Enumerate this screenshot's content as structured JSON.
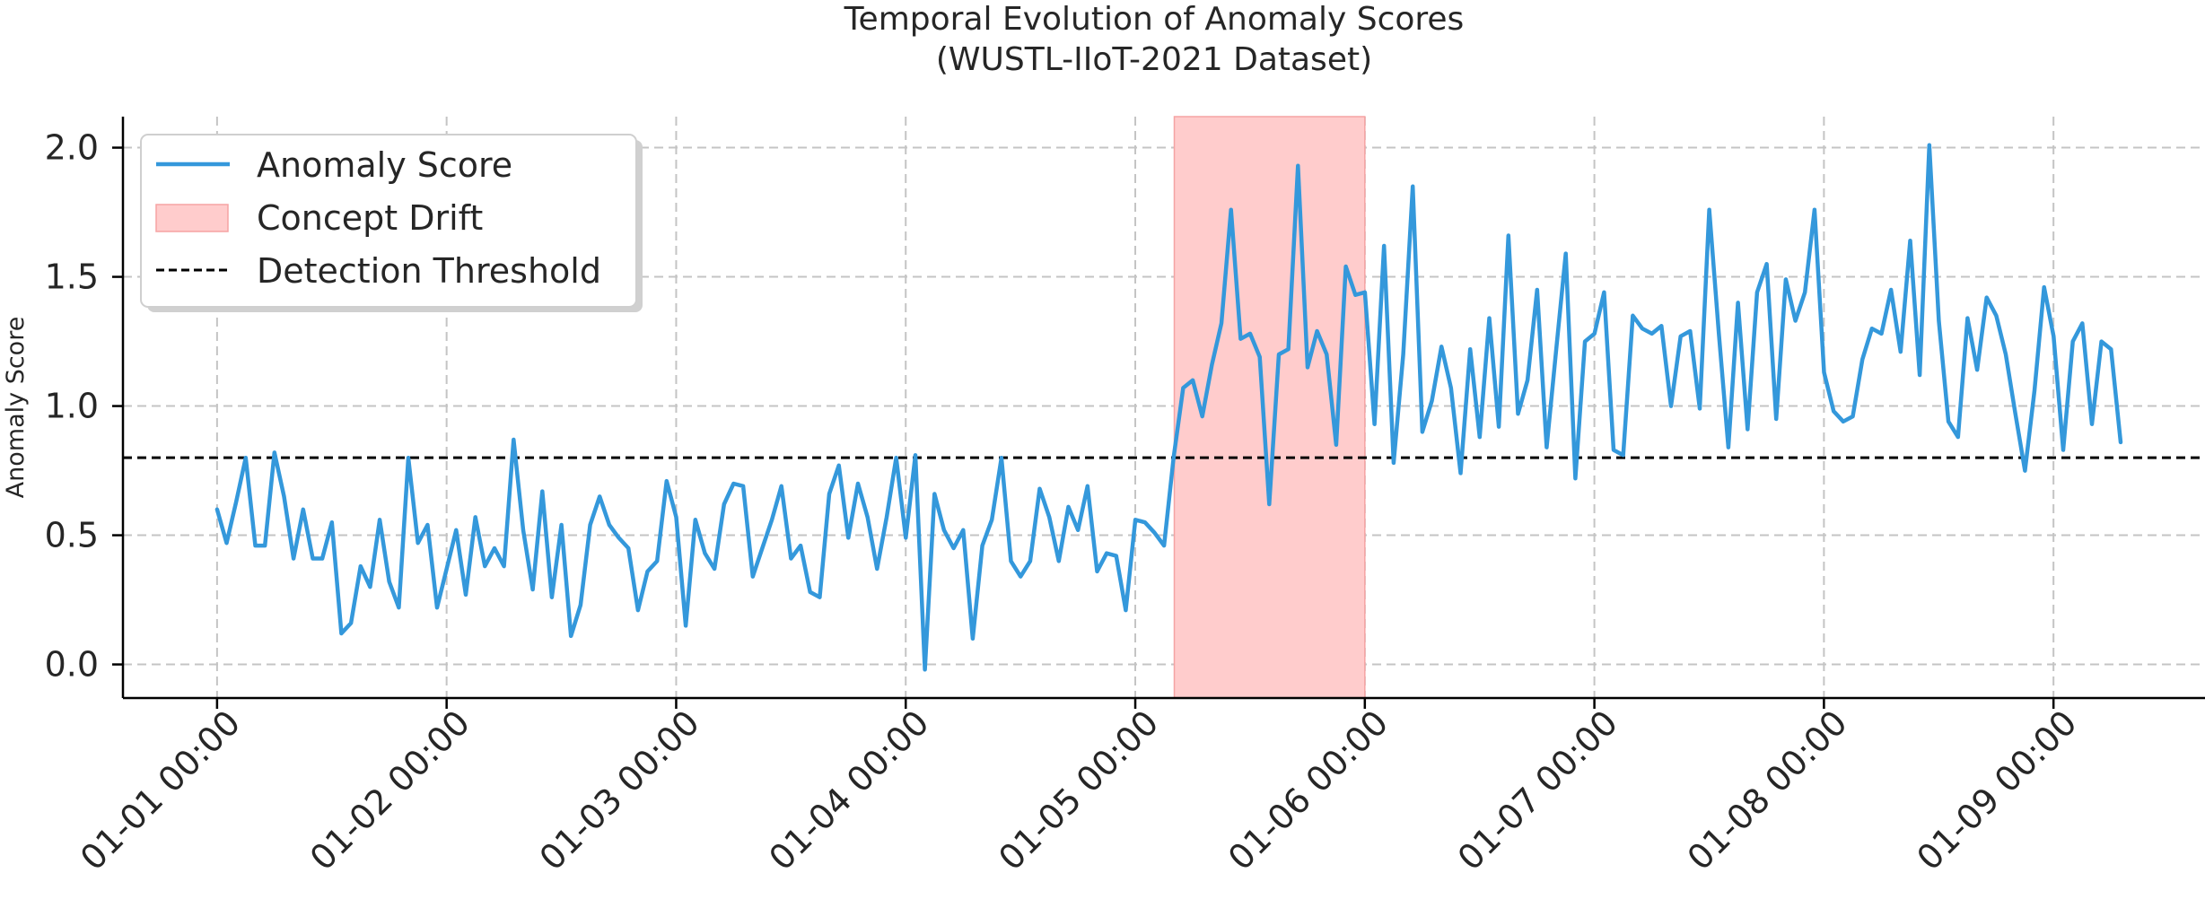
{
  "chart_data": {
    "type": "line",
    "title": "Temporal Evolution of Anomaly Scores",
    "subtitle": "(WUSTL-IIoT-2021 Dataset)",
    "xlabel": "",
    "ylabel": "Anomaly Score",
    "ylim": [
      -0.13,
      2.12
    ],
    "xlim": [
      -0.41,
      8.66
    ],
    "grid": true,
    "legend": {
      "placement": "top-left",
      "entries": [
        {
          "label": "Anomaly Score",
          "kind": "line",
          "color": "#3498db"
        },
        {
          "label": "Concept Drift",
          "kind": "patch",
          "color": "#ffcccc"
        },
        {
          "label": "Detection Threshold",
          "kind": "dashed-line",
          "color": "#000000"
        }
      ]
    },
    "x_ticks": [
      {
        "value": 0,
        "label": "01-01 00:00"
      },
      {
        "value": 1,
        "label": "01-02 00:00"
      },
      {
        "value": 2,
        "label": "01-03 00:00"
      },
      {
        "value": 3,
        "label": "01-04 00:00"
      },
      {
        "value": 4,
        "label": "01-05 00:00"
      },
      {
        "value": 5,
        "label": "01-06 00:00"
      },
      {
        "value": 6,
        "label": "01-07 00:00"
      },
      {
        "value": 7,
        "label": "01-08 00:00"
      },
      {
        "value": 8,
        "label": "01-09 00:00"
      }
    ],
    "y_ticks": [
      {
        "value": 0.0,
        "label": "0.0"
      },
      {
        "value": 0.5,
        "label": "0.5"
      },
      {
        "value": 1.0,
        "label": "1.0"
      },
      {
        "value": 1.5,
        "label": "1.5"
      },
      {
        "value": 2.0,
        "label": "2.0"
      }
    ],
    "threshold": {
      "value": 0.8,
      "color": "#000000"
    },
    "drift_region": {
      "start": 4.17,
      "end": 5.0,
      "color": "#ffcccc"
    },
    "series": [
      {
        "name": "Anomaly Score",
        "color": "#3498db",
        "x_start": 0,
        "x_step": 0.04167,
        "values": [
          0.6,
          0.47,
          0.63,
          0.8,
          0.46,
          0.46,
          0.82,
          0.65,
          0.41,
          0.6,
          0.41,
          0.41,
          0.55,
          0.12,
          0.16,
          0.38,
          0.3,
          0.56,
          0.32,
          0.22,
          0.8,
          0.47,
          0.54,
          0.22,
          0.37,
          0.52,
          0.27,
          0.57,
          0.38,
          0.45,
          0.38,
          0.87,
          0.52,
          0.29,
          0.67,
          0.26,
          0.54,
          0.11,
          0.23,
          0.54,
          0.65,
          0.54,
          0.49,
          0.45,
          0.21,
          0.36,
          0.4,
          0.71,
          0.57,
          0.15,
          0.56,
          0.43,
          0.37,
          0.62,
          0.7,
          0.69,
          0.34,
          0.45,
          0.56,
          0.69,
          0.41,
          0.46,
          0.28,
          0.26,
          0.66,
          0.77,
          0.49,
          0.7,
          0.57,
          0.37,
          0.57,
          0.8,
          0.49,
          0.81,
          -0.02,
          0.66,
          0.52,
          0.45,
          0.52,
          0.1,
          0.46,
          0.56,
          0.8,
          0.4,
          0.34,
          0.4,
          0.68,
          0.57,
          0.4,
          0.61,
          0.52,
          0.69,
          0.36,
          0.43,
          0.42,
          0.21,
          0.56,
          0.55,
          0.51,
          0.46,
          0.8,
          1.07,
          1.1,
          0.96,
          1.16,
          1.32,
          1.76,
          1.26,
          1.28,
          1.19,
          0.62,
          1.2,
          1.22,
          1.93,
          1.15,
          1.29,
          1.2,
          0.85,
          1.54,
          1.43,
          1.44,
          0.93,
          1.62,
          0.78,
          1.2,
          1.85,
          0.9,
          1.02,
          1.23,
          1.07,
          0.74,
          1.22,
          0.88,
          1.34,
          0.92,
          1.66,
          0.97,
          1.1,
          1.45,
          0.84,
          1.22,
          1.59,
          0.72,
          1.25,
          1.28,
          1.44,
          0.83,
          0.81,
          1.35,
          1.3,
          1.28,
          1.31,
          1.0,
          1.27,
          1.29,
          0.99,
          1.76,
          1.28,
          0.84,
          1.4,
          0.91,
          1.44,
          1.55,
          0.95,
          1.49,
          1.33,
          1.44,
          1.76,
          1.13,
          0.98,
          0.94,
          0.96,
          1.18,
          1.3,
          1.28,
          1.45,
          1.21,
          1.64,
          1.12,
          2.01,
          1.33,
          0.94,
          0.88,
          1.34,
          1.14,
          1.42,
          1.35,
          1.2,
          0.97,
          0.75,
          1.06,
          1.46,
          1.27,
          0.83,
          1.25,
          1.32,
          0.93,
          1.25,
          1.22,
          0.86
        ]
      }
    ]
  }
}
